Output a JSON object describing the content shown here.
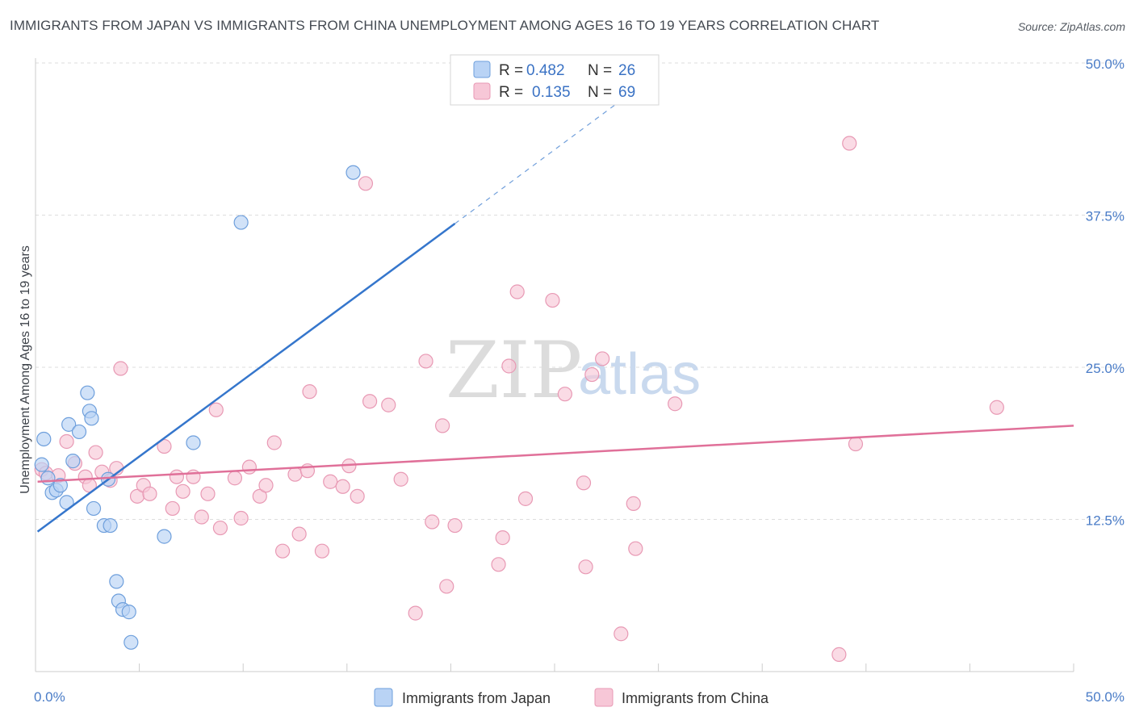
{
  "title": "IMMIGRANTS FROM JAPAN VS IMMIGRANTS FROM CHINA UNEMPLOYMENT AMONG AGES 16 TO 19 YEARS CORRELATION CHART",
  "source": "Source: ZipAtlas.com",
  "watermark": {
    "zip": "ZIP",
    "atlas": "atlas"
  },
  "colors": {
    "japan_fill": "#b9d3f5",
    "japan_stroke": "#6e9fdc",
    "japan_line": "#3576cc",
    "china_fill": "#f7c7d7",
    "china_stroke": "#e899b4",
    "china_line": "#e07099",
    "grid": "#dddddd",
    "tick_text": "#4a7cc7"
  },
  "legend": {
    "rows": [
      {
        "r_label": "R =",
        "r_value": "0.482",
        "n_label": "N =",
        "n_value": "26"
      },
      {
        "r_label": "R =",
        "r_value": "0.135",
        "n_label": "N =",
        "n_value": "69"
      }
    ]
  },
  "chart_data": {
    "type": "scatter",
    "title": "IMMIGRANTS FROM JAPAN VS IMMIGRANTS FROM CHINA UNEMPLOYMENT AMONG AGES 16 TO 19 YEARS CORRELATION CHART",
    "xlabel": "",
    "ylabel": "Unemployment Among Ages 16 to 19 years",
    "xlim": [
      0,
      50
    ],
    "ylim": [
      0,
      50
    ],
    "x_tick_labels": [
      "0.0%",
      "50.0%"
    ],
    "y_tick_labels": [
      "12.5%",
      "25.0%",
      "37.5%",
      "50.0%"
    ],
    "y_tick_values": [
      12.5,
      25,
      37.5,
      50
    ],
    "x_grid_values": [
      5,
      10,
      15,
      20,
      25,
      30,
      35,
      40,
      45,
      50
    ],
    "grid": true,
    "series": [
      {
        "name": "Immigrants from Japan",
        "color": "#b9d3f5",
        "points": [
          [
            0.3,
            17.0
          ],
          [
            0.4,
            19.1
          ],
          [
            0.6,
            15.9
          ],
          [
            0.8,
            14.7
          ],
          [
            1.0,
            14.9
          ],
          [
            1.2,
            15.3
          ],
          [
            1.5,
            13.9
          ],
          [
            1.6,
            20.3
          ],
          [
            1.8,
            17.3
          ],
          [
            2.1,
            19.7
          ],
          [
            2.5,
            22.9
          ],
          [
            2.6,
            21.4
          ],
          [
            2.7,
            20.8
          ],
          [
            2.8,
            13.4
          ],
          [
            3.3,
            12.0
          ],
          [
            3.5,
            15.8
          ],
          [
            3.6,
            12.0
          ],
          [
            3.9,
            7.4
          ],
          [
            4.0,
            5.8
          ],
          [
            4.2,
            5.1
          ],
          [
            4.5,
            4.9
          ],
          [
            4.6,
            2.4
          ],
          [
            6.2,
            11.1
          ],
          [
            7.6,
            18.8
          ],
          [
            9.9,
            36.9
          ],
          [
            15.3,
            41.0
          ]
        ],
        "trend": {
          "x": [
            0.1,
            20.2
          ],
          "y": [
            11.5,
            36.8
          ],
          "dashed_extension": {
            "x": [
              20.2,
              30.0
            ],
            "y": [
              36.8,
              49.2
            ]
          }
        }
      },
      {
        "name": "Immigrants from China",
        "color": "#f7c7d7",
        "points": [
          [
            0.3,
            16.6
          ],
          [
            0.5,
            16.3
          ],
          [
            1.1,
            16.1
          ],
          [
            1.5,
            18.9
          ],
          [
            1.9,
            17.1
          ],
          [
            2.4,
            16.0
          ],
          [
            2.6,
            15.3
          ],
          [
            2.9,
            18.0
          ],
          [
            3.2,
            16.4
          ],
          [
            3.6,
            15.7
          ],
          [
            3.9,
            16.7
          ],
          [
            4.1,
            24.9
          ],
          [
            4.9,
            14.4
          ],
          [
            5.2,
            15.3
          ],
          [
            5.5,
            14.6
          ],
          [
            6.2,
            18.5
          ],
          [
            6.6,
            13.4
          ],
          [
            6.8,
            16.0
          ],
          [
            7.1,
            14.8
          ],
          [
            7.6,
            16.0
          ],
          [
            8.0,
            12.7
          ],
          [
            8.3,
            14.6
          ],
          [
            8.7,
            21.5
          ],
          [
            8.9,
            11.8
          ],
          [
            9.6,
            15.9
          ],
          [
            9.9,
            12.6
          ],
          [
            10.3,
            16.8
          ],
          [
            10.8,
            14.4
          ],
          [
            11.1,
            15.3
          ],
          [
            11.5,
            18.8
          ],
          [
            11.9,
            9.9
          ],
          [
            12.5,
            16.2
          ],
          [
            12.7,
            11.3
          ],
          [
            13.1,
            16.5
          ],
          [
            13.2,
            23.0
          ],
          [
            13.8,
            9.9
          ],
          [
            14.2,
            15.6
          ],
          [
            14.8,
            15.2
          ],
          [
            15.1,
            16.9
          ],
          [
            15.5,
            14.4
          ],
          [
            15.9,
            40.1
          ],
          [
            16.1,
            22.2
          ],
          [
            17.0,
            21.9
          ],
          [
            17.6,
            15.8
          ],
          [
            18.3,
            4.8
          ],
          [
            18.8,
            25.5
          ],
          [
            19.1,
            12.3
          ],
          [
            19.6,
            20.2
          ],
          [
            19.8,
            7.0
          ],
          [
            20.2,
            12.0
          ],
          [
            22.3,
            8.8
          ],
          [
            22.5,
            11.0
          ],
          [
            22.8,
            25.1
          ],
          [
            23.2,
            31.2
          ],
          [
            23.6,
            14.2
          ],
          [
            24.9,
            30.5
          ],
          [
            25.5,
            22.8
          ],
          [
            26.4,
            15.5
          ],
          [
            26.5,
            8.6
          ],
          [
            26.8,
            24.4
          ],
          [
            27.3,
            25.7
          ],
          [
            28.2,
            3.1
          ],
          [
            28.8,
            13.8
          ],
          [
            28.9,
            10.1
          ],
          [
            30.8,
            22.0
          ],
          [
            38.7,
            1.4
          ],
          [
            39.2,
            43.4
          ],
          [
            39.5,
            18.7
          ],
          [
            46.3,
            21.7
          ]
        ],
        "trend": {
          "x": [
            0.1,
            50.0
          ],
          "y": [
            15.6,
            20.2
          ]
        }
      }
    ]
  }
}
